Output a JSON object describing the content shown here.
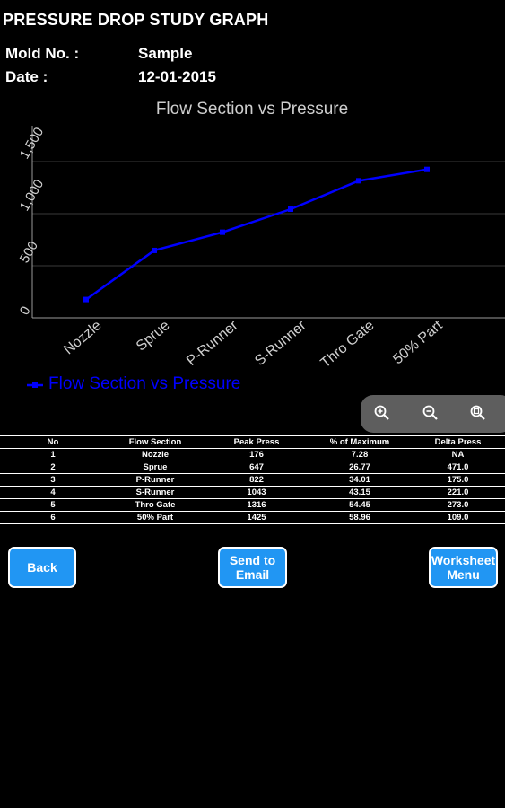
{
  "header": {
    "title": "PRESSURE DROP STUDY GRAPH"
  },
  "meta": {
    "mold_label": "Mold No. :",
    "mold_value": "Sample",
    "date_label": "Date :",
    "date_value": "12-01-2015"
  },
  "chart_data": {
    "type": "line",
    "title": "Flow Section vs Pressure",
    "categories": [
      "Nozzle",
      "Sprue",
      "P-Runner",
      "S-Runner",
      "Thro Gate",
      "50% Part"
    ],
    "series": [
      {
        "name": "Flow Section vs Pressure",
        "values": [
          176,
          647,
          822,
          1043,
          1316,
          1425
        ],
        "color": "#0000ff"
      }
    ],
    "yticks": [
      "0",
      "500",
      "1,000",
      "1,500"
    ],
    "ylim": [
      0,
      1500
    ],
    "grid": true,
    "legend": "bottom-left"
  },
  "zoom": {
    "icons": [
      "zoom-in-icon",
      "zoom-out-icon",
      "zoom-reset-icon"
    ]
  },
  "table": {
    "headers": [
      "No",
      "Flow Section",
      "Peak Press",
      "% of Maximum",
      "Delta Press"
    ],
    "rows": [
      [
        "1",
        "Nozzle",
        "176",
        "7.28",
        "NA"
      ],
      [
        "2",
        "Sprue",
        "647",
        "26.77",
        "471.0"
      ],
      [
        "3",
        "P-Runner",
        "822",
        "34.01",
        "175.0"
      ],
      [
        "4",
        "S-Runner",
        "1043",
        "43.15",
        "221.0"
      ],
      [
        "5",
        "Thro Gate",
        "1316",
        "54.45",
        "273.0"
      ],
      [
        "6",
        "50% Part",
        "1425",
        "58.96",
        "109.0"
      ]
    ]
  },
  "buttons": {
    "back": "Back",
    "email": "Send to Email",
    "worksheet": "Worksheet Menu"
  },
  "colors": {
    "accent": "#2196f3",
    "series": "#0000ff"
  }
}
